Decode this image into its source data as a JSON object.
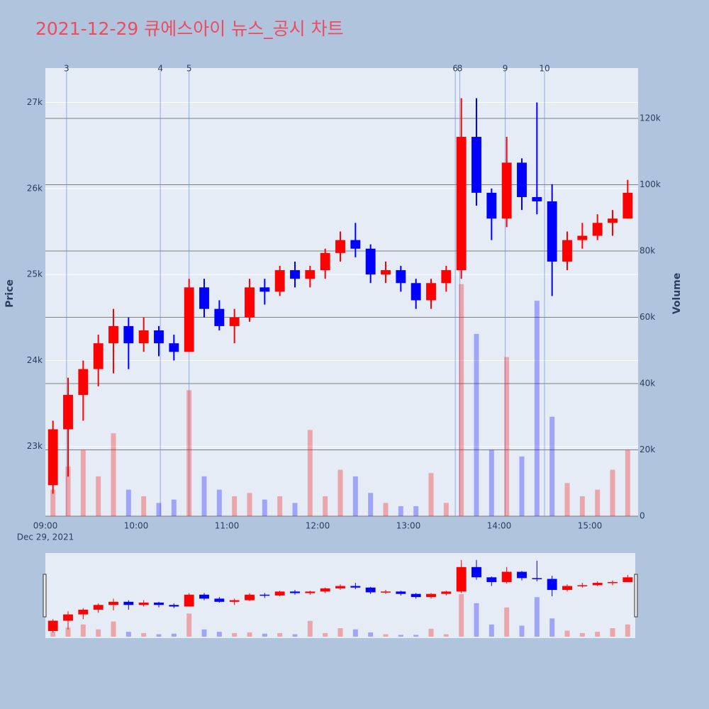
{
  "chart_data": {
    "type": "candlestick",
    "title": "2021-12-29 큐에스아이 뉴스_공시 차트",
    "y_label": "Price",
    "y2_label": "Volume",
    "x": [
      "09:00",
      "09:10",
      "09:20",
      "09:30",
      "09:40",
      "09:50",
      "10:00",
      "10:10",
      "10:20",
      "10:30",
      "10:40",
      "10:50",
      "11:00",
      "11:10",
      "11:20",
      "11:30",
      "11:40",
      "11:50",
      "12:00",
      "12:10",
      "12:20",
      "12:30",
      "12:40",
      "12:50",
      "13:00",
      "13:10",
      "13:20",
      "13:30",
      "13:40",
      "13:50",
      "14:00",
      "14:10",
      "14:20",
      "14:30",
      "14:40",
      "14:50",
      "15:00",
      "15:10",
      "15:20"
    ],
    "open": [
      22550,
      23200,
      23600,
      23900,
      24200,
      24400,
      24200,
      24350,
      24200,
      24100,
      24850,
      24600,
      24400,
      24500,
      24850,
      24800,
      25050,
      24950,
      25050,
      25250,
      25400,
      25300,
      25000,
      25050,
      24900,
      24700,
      24900,
      25050,
      26600,
      25950,
      25650,
      26300,
      25900,
      25850,
      25150,
      25400,
      25450,
      25600,
      25650
    ],
    "high": [
      23300,
      23800,
      24000,
      24300,
      24600,
      24500,
      24500,
      24400,
      24300,
      24950,
      24950,
      24700,
      24600,
      24950,
      24950,
      25100,
      25150,
      25100,
      25300,
      25500,
      25600,
      25350,
      25150,
      25100,
      24950,
      24950,
      25100,
      27050,
      27050,
      26000,
      26600,
      26350,
      27000,
      26050,
      25500,
      25600,
      25700,
      25750,
      26100
    ],
    "low": [
      22450,
      22650,
      23300,
      23700,
      23850,
      23900,
      24100,
      24050,
      24000,
      24100,
      24500,
      24350,
      24200,
      24450,
      24650,
      24750,
      24850,
      24850,
      24950,
      25150,
      25200,
      24900,
      24900,
      24800,
      24600,
      24600,
      24800,
      24950,
      25800,
      25400,
      25550,
      25750,
      25700,
      24750,
      25050,
      25300,
      25400,
      25450,
      25650
    ],
    "close": [
      23200,
      23600,
      23900,
      24200,
      24400,
      24200,
      24350,
      24200,
      24100,
      24850,
      24600,
      24400,
      24500,
      24850,
      24800,
      25050,
      24950,
      25050,
      25250,
      25400,
      25300,
      25000,
      25050,
      24900,
      24700,
      24900,
      25050,
      26600,
      25950,
      25650,
      26300,
      25900,
      25850,
      25150,
      25400,
      25450,
      25600,
      25650,
      25950
    ],
    "volume": [
      8000,
      15000,
      20000,
      12000,
      25000,
      8000,
      6000,
      4000,
      5000,
      38000,
      12000,
      8000,
      6000,
      7000,
      5000,
      6000,
      4000,
      26000,
      6000,
      14000,
      12000,
      7000,
      4000,
      3000,
      3000,
      13000,
      4000,
      70000,
      55000,
      20000,
      48000,
      18000,
      65000,
      30000,
      10000,
      6000,
      8000,
      14000,
      20000
    ],
    "increasing_color": "#ff0000",
    "decreasing_color": "#0000ff",
    "xlim": [
      "09:00",
      "15:30"
    ],
    "xticks": [
      "09:00",
      "10:00",
      "11:00",
      "12:00",
      "13:00",
      "14:00",
      "15:00"
    ],
    "x_date": "Dec 29, 2021",
    "ylim": [
      22190,
      27400
    ],
    "yticks": [
      {
        "value": 23000,
        "label": "23k"
      },
      {
        "value": 24000,
        "label": "24k"
      },
      {
        "value": 25000,
        "label": "25k"
      },
      {
        "value": 26000,
        "label": "26k"
      },
      {
        "value": 27000,
        "label": "27k"
      }
    ],
    "y2lim": [
      0,
      135200
    ],
    "y2ticks": [
      0,
      {
        "value": 20000,
        "label": "20k"
      },
      {
        "value": 40000,
        "label": "40k"
      },
      {
        "value": 60000,
        "label": "60k"
      },
      {
        "value": 80000,
        "label": "80k"
      },
      {
        "value": 100000,
        "label": "100k"
      },
      {
        "value": 120000,
        "label": "120k"
      }
    ],
    "annotations": [
      {
        "x": "09:14",
        "label": "3"
      },
      {
        "x": "10:16",
        "label": "4"
      },
      {
        "x": "10:35",
        "label": "5"
      },
      {
        "x": "13:31",
        "label": "6"
      },
      {
        "x": "13:34",
        "label": "8"
      },
      {
        "x": "14:04",
        "label": "9"
      },
      {
        "x": "14:30",
        "label": "10"
      }
    ],
    "grid": true,
    "range_slider": true
  }
}
